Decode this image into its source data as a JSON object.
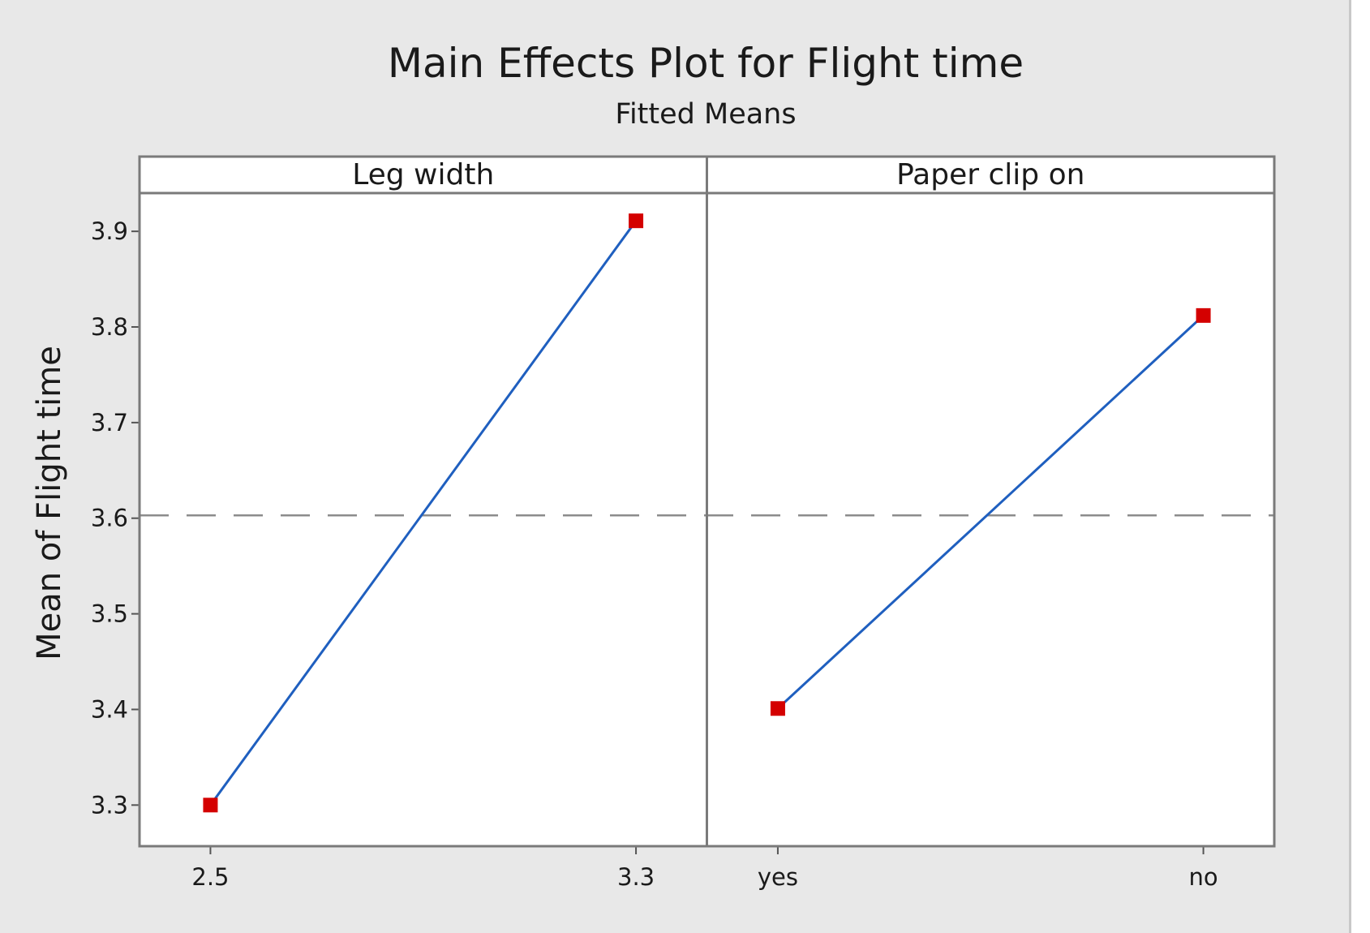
{
  "chart_data": {
    "type": "line",
    "title": "Main Effects Plot for Flight time",
    "subtitle": "Fitted Means",
    "ylabel": "Mean of Flight time",
    "ylim": [
      3.257,
      3.94
    ],
    "yticks": [
      3.3,
      3.4,
      3.5,
      3.6,
      3.7,
      3.8,
      3.9
    ],
    "reference_line": 3.603,
    "grid": false,
    "colors": {
      "line": "#1f5fbf",
      "marker": "#d40000",
      "reference": "#8c8c8c",
      "background": "#e8e8e8"
    },
    "panels": [
      {
        "label": "Leg width",
        "categories": [
          "2.5",
          "3.3"
        ],
        "values": [
          3.3,
          3.911
        ]
      },
      {
        "label": "Paper clip on",
        "categories": [
          "yes",
          "no"
        ],
        "values": [
          3.401,
          3.812
        ]
      }
    ]
  }
}
